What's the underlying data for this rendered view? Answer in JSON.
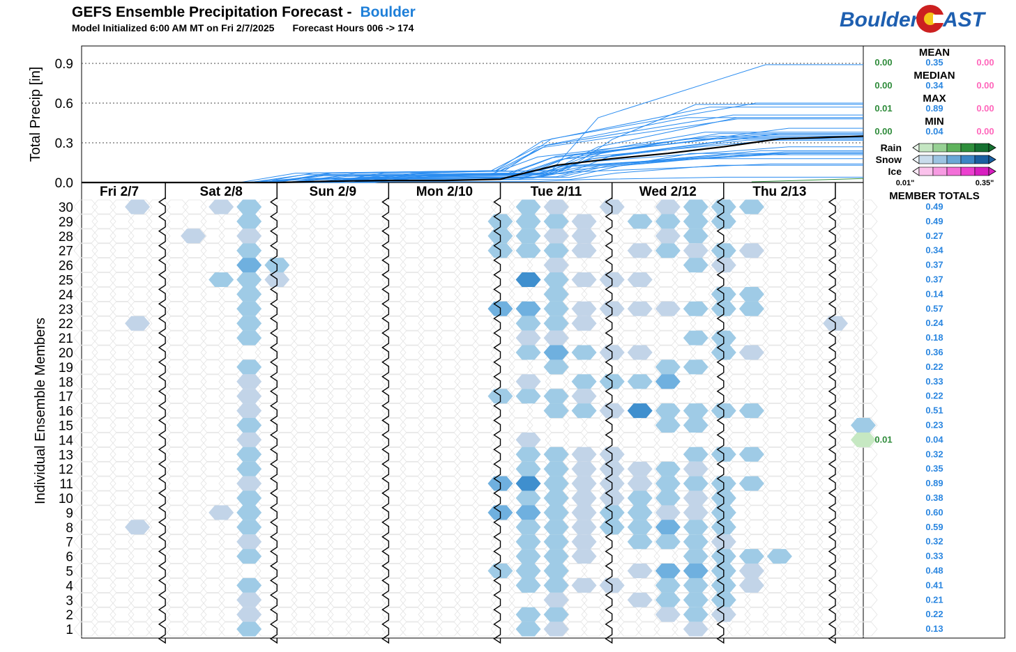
{
  "header": {
    "title": "GEFS Ensemble Precipitation Forecast -",
    "location": "Boulder",
    "init": "Model Initialized 6:00 AM MT on Fri 2/7/2025",
    "hours": "Forecast Hours 006 -> 174"
  },
  "logo": {
    "left": "Boulder",
    "right": "AST"
  },
  "colors": {
    "accent": "#1e7fd8",
    "rain": "#2e8b3a",
    "snow": "#2a86e0",
    "ice": "#ff66bb",
    "mean_line": "#000000",
    "member_line": "#2a8cf0"
  },
  "chart_data": {
    "type": "line",
    "ylabel": "Total Precip [in]",
    "ylim": [
      0,
      1.0
    ],
    "yticks": [
      "0.0",
      "0.3",
      "0.6",
      "0.9"
    ],
    "x_hours": [
      6,
      174
    ],
    "days": [
      "Fri 2/7",
      "Sat 2/8",
      "Sun 2/9",
      "Mon 2/10",
      "Tue 2/11",
      "Wed 2/12",
      "Thu 2/13"
    ],
    "member_axis_label": "Individual Ensemble Members",
    "members": [
      "30",
      "29",
      "28",
      "27",
      "26",
      "25",
      "24",
      "23",
      "22",
      "21",
      "20",
      "19",
      "18",
      "17",
      "16",
      "15",
      "14",
      "13",
      "12",
      "11",
      "10",
      "9",
      "8",
      "7",
      "6",
      "5",
      "4",
      "3",
      "2",
      "1"
    ],
    "member_totals": [
      "0.49",
      "0.49",
      "0.27",
      "0.34",
      "0.37",
      "0.37",
      "0.14",
      "0.57",
      "0.24",
      "0.18",
      "0.36",
      "0.22",
      "0.33",
      "0.22",
      "0.51",
      "0.23",
      "0.04",
      "0.32",
      "0.35",
      "0.89",
      "0.38",
      "0.60",
      "0.59",
      "0.32",
      "0.33",
      "0.48",
      "0.41",
      "0.21",
      "0.22",
      "0.13"
    ],
    "member_totals_title": "MEMBER TOTALS",
    "rain_member_total": {
      "member": "14",
      "value": "0.01"
    },
    "stats": [
      {
        "label": "MEAN",
        "rain": "0.00",
        "snow": "0.35",
        "ice": "0.00"
      },
      {
        "label": "MEDIAN",
        "rain": "0.00",
        "snow": "0.34",
        "ice": "0.00"
      },
      {
        "label": "MAX",
        "rain": "0.01",
        "snow": "0.89",
        "ice": "0.00"
      },
      {
        "label": "MIN",
        "rain": "0.00",
        "snow": "0.04",
        "ice": "0.00"
      }
    ],
    "legend": {
      "rain": "Rain",
      "snow": "Snow",
      "ice": "Ice",
      "min": "0.01\"",
      "max": "0.35\""
    },
    "mean_series": {
      "x": [
        6,
        48,
        60,
        72,
        84,
        96,
        100,
        108,
        120,
        132,
        144,
        150,
        156,
        174
      ],
      "y": [
        0,
        0,
        0.01,
        0.015,
        0.015,
        0.025,
        0.06,
        0.13,
        0.18,
        0.22,
        0.27,
        0.3,
        0.33,
        0.35
      ]
    },
    "member_final": [
      0.49,
      0.49,
      0.27,
      0.34,
      0.37,
      0.37,
      0.14,
      0.57,
      0.24,
      0.18,
      0.36,
      0.22,
      0.33,
      0.22,
      0.51,
      0.23,
      0.04,
      0.32,
      0.35,
      0.89,
      0.38,
      0.6,
      0.59,
      0.32,
      0.33,
      0.48,
      0.41,
      0.21,
      0.22,
      0.13
    ],
    "hexes": [
      {
        "m": "30",
        "h": [
          [
            18,
            1
          ],
          [
            36,
            1
          ],
          [
            42,
            2
          ],
          [
            102,
            2
          ],
          [
            108,
            1
          ],
          [
            120,
            1
          ],
          [
            132,
            1
          ],
          [
            138,
            2
          ],
          [
            144,
            2
          ],
          [
            150,
            2
          ]
        ]
      },
      {
        "m": "29",
        "h": [
          [
            42,
            2
          ],
          [
            96,
            2
          ],
          [
            102,
            2
          ],
          [
            108,
            2
          ],
          [
            114,
            1
          ],
          [
            126,
            2
          ],
          [
            132,
            2
          ],
          [
            138,
            2
          ],
          [
            144,
            2
          ]
        ]
      },
      {
        "m": "28",
        "h": [
          [
            30,
            1
          ],
          [
            42,
            1
          ],
          [
            96,
            2
          ],
          [
            102,
            2
          ],
          [
            108,
            1
          ],
          [
            114,
            1
          ],
          [
            132,
            1
          ],
          [
            138,
            2
          ]
        ]
      },
      {
        "m": "27",
        "h": [
          [
            42,
            2
          ],
          [
            96,
            2
          ],
          [
            102,
            2
          ],
          [
            108,
            2
          ],
          [
            114,
            1
          ],
          [
            126,
            1
          ],
          [
            132,
            2
          ],
          [
            138,
            1
          ],
          [
            144,
            2
          ],
          [
            150,
            1
          ]
        ]
      },
      {
        "m": "26",
        "h": [
          [
            42,
            3
          ],
          [
            48,
            2
          ],
          [
            108,
            1
          ],
          [
            138,
            2
          ],
          [
            144,
            1
          ]
        ]
      },
      {
        "m": "25",
        "h": [
          [
            36,
            2
          ],
          [
            42,
            2
          ],
          [
            48,
            1
          ],
          [
            102,
            4
          ],
          [
            108,
            2
          ],
          [
            114,
            1
          ],
          [
            120,
            1
          ],
          [
            126,
            1
          ]
        ]
      },
      {
        "m": "24",
        "h": [
          [
            42,
            2
          ],
          [
            108,
            2
          ],
          [
            144,
            2
          ],
          [
            150,
            2
          ]
        ]
      },
      {
        "m": "23",
        "h": [
          [
            42,
            2
          ],
          [
            96,
            3
          ],
          [
            102,
            3
          ],
          [
            108,
            2
          ],
          [
            114,
            1
          ],
          [
            120,
            1
          ],
          [
            126,
            1
          ],
          [
            132,
            1
          ],
          [
            138,
            2
          ],
          [
            144,
            2
          ],
          [
            150,
            2
          ]
        ]
      },
      {
        "m": "22",
        "h": [
          [
            18,
            1
          ],
          [
            42,
            2
          ],
          [
            102,
            2
          ],
          [
            108,
            2
          ],
          [
            114,
            1
          ],
          [
            168,
            1
          ]
        ]
      },
      {
        "m": "21",
        "h": [
          [
            42,
            2
          ],
          [
            102,
            1
          ],
          [
            108,
            1
          ],
          [
            138,
            2
          ],
          [
            144,
            2
          ]
        ]
      },
      {
        "m": "20",
        "h": [
          [
            102,
            2
          ],
          [
            108,
            3
          ],
          [
            114,
            2
          ],
          [
            120,
            1
          ],
          [
            126,
            1
          ],
          [
            144,
            2
          ],
          [
            150,
            1
          ]
        ]
      },
      {
        "m": "19",
        "h": [
          [
            42,
            2
          ],
          [
            108,
            2
          ],
          [
            132,
            2
          ],
          [
            138,
            2
          ]
        ]
      },
      {
        "m": "18",
        "h": [
          [
            42,
            1
          ],
          [
            102,
            1
          ],
          [
            114,
            2
          ],
          [
            120,
            2
          ],
          [
            126,
            2
          ],
          [
            132,
            3
          ]
        ]
      },
      {
        "m": "17",
        "h": [
          [
            42,
            1
          ],
          [
            96,
            2
          ],
          [
            102,
            2
          ],
          [
            108,
            2
          ],
          [
            114,
            1
          ]
        ]
      },
      {
        "m": "16",
        "h": [
          [
            42,
            1
          ],
          [
            108,
            2
          ],
          [
            114,
            2
          ],
          [
            120,
            1
          ],
          [
            126,
            4
          ],
          [
            132,
            2
          ],
          [
            138,
            2
          ],
          [
            144,
            2
          ],
          [
            150,
            2
          ]
        ]
      },
      {
        "m": "15",
        "h": [
          [
            42,
            2
          ],
          [
            132,
            2
          ],
          [
            138,
            2
          ],
          [
            174,
            2
          ]
        ]
      },
      {
        "m": "14",
        "h": [
          [
            42,
            1
          ],
          [
            102,
            1
          ],
          [
            174,
            0
          ]
        ]
      },
      {
        "m": "13",
        "h": [
          [
            42,
            2
          ],
          [
            102,
            2
          ],
          [
            108,
            2
          ],
          [
            114,
            1
          ],
          [
            120,
            1
          ],
          [
            138,
            2
          ],
          [
            144,
            2
          ],
          [
            150,
            2
          ]
        ]
      },
      {
        "m": "12",
        "h": [
          [
            42,
            2
          ],
          [
            102,
            2
          ],
          [
            108,
            2
          ],
          [
            114,
            1
          ],
          [
            120,
            1
          ],
          [
            126,
            1
          ],
          [
            132,
            2
          ],
          [
            138,
            1
          ]
        ]
      },
      {
        "m": "11",
        "h": [
          [
            42,
            1
          ],
          [
            96,
            3
          ],
          [
            102,
            4
          ],
          [
            108,
            2
          ],
          [
            114,
            1
          ],
          [
            120,
            1
          ],
          [
            126,
            1
          ],
          [
            132,
            2
          ],
          [
            138,
            2
          ],
          [
            144,
            2
          ],
          [
            150,
            2
          ]
        ]
      },
      {
        "m": "10",
        "h": [
          [
            42,
            2
          ],
          [
            102,
            2
          ],
          [
            108,
            2
          ],
          [
            114,
            1
          ],
          [
            120,
            1
          ],
          [
            126,
            2
          ],
          [
            132,
            2
          ],
          [
            138,
            1
          ],
          [
            144,
            2
          ]
        ]
      },
      {
        "m": "9",
        "h": [
          [
            36,
            1
          ],
          [
            42,
            2
          ],
          [
            96,
            3
          ],
          [
            102,
            3
          ],
          [
            108,
            2
          ],
          [
            114,
            1
          ],
          [
            120,
            2
          ],
          [
            126,
            2
          ],
          [
            132,
            1
          ],
          [
            138,
            1
          ],
          [
            144,
            2
          ]
        ]
      },
      {
        "m": "8",
        "h": [
          [
            18,
            1
          ],
          [
            42,
            2
          ],
          [
            102,
            2
          ],
          [
            108,
            2
          ],
          [
            114,
            1
          ],
          [
            120,
            2
          ],
          [
            126,
            2
          ],
          [
            132,
            3
          ],
          [
            138,
            2
          ],
          [
            144,
            2
          ]
        ]
      },
      {
        "m": "7",
        "h": [
          [
            42,
            1
          ],
          [
            102,
            2
          ],
          [
            108,
            2
          ],
          [
            114,
            1
          ],
          [
            126,
            2
          ],
          [
            132,
            2
          ],
          [
            138,
            2
          ],
          [
            144,
            1
          ]
        ]
      },
      {
        "m": "6",
        "h": [
          [
            42,
            2
          ],
          [
            102,
            2
          ],
          [
            108,
            2
          ],
          [
            114,
            1
          ],
          [
            138,
            2
          ],
          [
            144,
            2
          ],
          [
            150,
            2
          ],
          [
            156,
            2
          ]
        ]
      },
      {
        "m": "5",
        "h": [
          [
            96,
            2
          ],
          [
            102,
            2
          ],
          [
            108,
            2
          ],
          [
            126,
            1
          ],
          [
            132,
            3
          ],
          [
            138,
            3
          ],
          [
            144,
            2
          ],
          [
            150,
            1
          ]
        ]
      },
      {
        "m": "4",
        "h": [
          [
            42,
            2
          ],
          [
            102,
            2
          ],
          [
            108,
            2
          ],
          [
            114,
            1
          ],
          [
            120,
            1
          ],
          [
            132,
            2
          ],
          [
            138,
            2
          ],
          [
            144,
            2
          ],
          [
            150,
            1
          ]
        ]
      },
      {
        "m": "3",
        "h": [
          [
            42,
            1
          ],
          [
            108,
            1
          ],
          [
            126,
            1
          ],
          [
            132,
            2
          ],
          [
            138,
            2
          ],
          [
            144,
            2
          ]
        ]
      },
      {
        "m": "2",
        "h": [
          [
            42,
            1
          ],
          [
            102,
            2
          ],
          [
            108,
            2
          ],
          [
            132,
            1
          ],
          [
            138,
            2
          ],
          [
            144,
            1
          ]
        ]
      },
      {
        "m": "1",
        "h": [
          [
            42,
            2
          ],
          [
            102,
            2
          ],
          [
            108,
            1
          ],
          [
            138,
            1
          ]
        ]
      }
    ]
  }
}
